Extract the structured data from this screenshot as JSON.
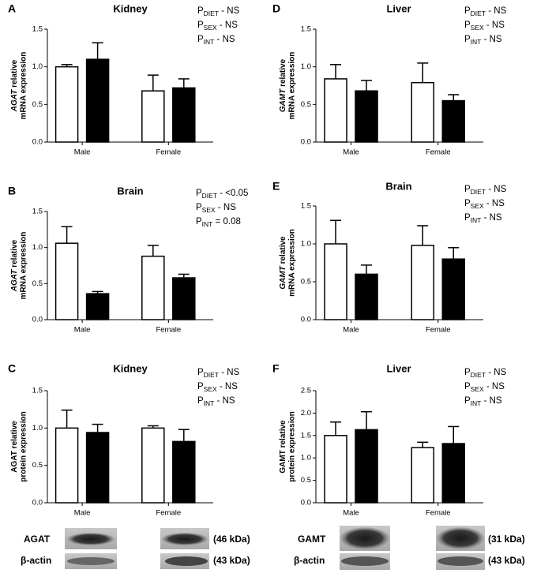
{
  "chart_data": [
    {
      "type": "bar",
      "panel": "A",
      "title": "Kidney",
      "gene": "AGAT",
      "gene_italic": true,
      "ylabel": [
        "relative",
        "mRNA expression"
      ],
      "categories": [
        "Male",
        "Female"
      ],
      "ylim": [
        0,
        1.5
      ],
      "yticks": [
        {
          "value": 0,
          "label": "0.0"
        },
        0.5,
        {
          "value": 1,
          "label": "1.0"
        },
        1.5
      ],
      "stats": [
        {
          "prefix": "P",
          "sub": "DIET",
          "text": " - NS"
        },
        {
          "prefix": "P",
          "sub": "SEX",
          "text": " - NS"
        },
        {
          "prefix": "P",
          "sub": "INT",
          "text": " - NS"
        }
      ],
      "series": [
        {
          "color": "#ffffff",
          "values": [
            1.0,
            0.68
          ],
          "errors": [
            0.03,
            0.21
          ]
        },
        {
          "color": "#000000",
          "values": [
            1.1,
            0.72
          ],
          "errors": [
            0.22,
            0.12
          ]
        }
      ]
    },
    {
      "type": "bar",
      "panel": "B",
      "title": "Brain",
      "gene": "AGAT",
      "gene_italic": true,
      "ylabel": [
        "relative",
        "mRNA expression"
      ],
      "categories": [
        "Male",
        "Female"
      ],
      "ylim": [
        0,
        1.5
      ],
      "yticks": [
        {
          "value": 0,
          "label": "0.0"
        },
        0.5,
        {
          "value": 1,
          "label": "1.0"
        },
        1.5
      ],
      "stats": [
        {
          "prefix": "P",
          "sub": "DIET",
          "text": " - <0.05"
        },
        {
          "prefix": "P",
          "sub": "SEX",
          "text": " - NS"
        },
        {
          "prefix": "P",
          "sub": "INT",
          "text": " = 0.08"
        }
      ],
      "series": [
        {
          "color": "#ffffff",
          "values": [
            1.06,
            0.88
          ],
          "errors": [
            0.23,
            0.15
          ]
        },
        {
          "color": "#000000",
          "values": [
            0.36,
            0.58
          ],
          "errors": [
            0.03,
            0.05
          ]
        }
      ]
    },
    {
      "type": "bar",
      "panel": "C",
      "title": "Kidney",
      "gene": "AGAT",
      "gene_italic": false,
      "ylabel": [
        "relative",
        "protein expression"
      ],
      "categories": [
        "Male",
        "Female"
      ],
      "ylim": [
        0,
        1.5
      ],
      "yticks": [
        {
          "value": 0,
          "label": "0.0"
        },
        0.5,
        {
          "value": 1,
          "label": "1.0"
        },
        1.5
      ],
      "stats": [
        {
          "prefix": "P",
          "sub": "DIET",
          "text": " - NS"
        },
        {
          "prefix": "P",
          "sub": "SEX",
          "text": " - NS"
        },
        {
          "prefix": "P",
          "sub": "INT",
          "text": " - NS"
        }
      ],
      "series": [
        {
          "color": "#ffffff",
          "values": [
            1.0,
            1.0
          ],
          "errors": [
            0.24,
            0.03
          ]
        },
        {
          "color": "#000000",
          "values": [
            0.94,
            0.82
          ],
          "errors": [
            0.11,
            0.16
          ]
        }
      ]
    },
    {
      "type": "bar",
      "panel": "D",
      "title": "Liver",
      "gene": "GAMT",
      "gene_italic": true,
      "ylabel": [
        "relative",
        "mRNA expression"
      ],
      "categories": [
        "Male",
        "Female"
      ],
      "ylim": [
        0,
        1.5
      ],
      "yticks": [
        {
          "value": 0,
          "label": "0.0"
        },
        0.5,
        {
          "value": 1,
          "label": "1.0"
        },
        1.5
      ],
      "stats": [
        {
          "prefix": "P",
          "sub": "DIET",
          "text": " - NS"
        },
        {
          "prefix": "P",
          "sub": "SEX",
          "text": " - NS"
        },
        {
          "prefix": "P",
          "sub": "INT",
          "text": " - NS"
        }
      ],
      "series": [
        {
          "color": "#ffffff",
          "values": [
            0.84,
            0.79
          ],
          "errors": [
            0.19,
            0.26
          ]
        },
        {
          "color": "#000000",
          "values": [
            0.68,
            0.55
          ],
          "errors": [
            0.14,
            0.08
          ]
        }
      ]
    },
    {
      "type": "bar",
      "panel": "E",
      "title": "Brain",
      "gene": "GAMT",
      "gene_italic": true,
      "ylabel": [
        "relative",
        "mRNA expression"
      ],
      "categories": [
        "Male",
        "Female"
      ],
      "ylim": [
        0,
        1.5
      ],
      "yticks": [
        {
          "value": 0,
          "label": "0.0"
        },
        0.5,
        {
          "value": 1,
          "label": "1.0"
        },
        1.5
      ],
      "stats": [
        {
          "prefix": "P",
          "sub": "DIET",
          "text": " - NS"
        },
        {
          "prefix": "P",
          "sub": "SEX",
          "text": " - NS"
        },
        {
          "prefix": "P",
          "sub": "INT",
          "text": " - NS"
        }
      ],
      "series": [
        {
          "color": "#ffffff",
          "values": [
            1.0,
            0.98
          ],
          "errors": [
            0.31,
            0.26
          ]
        },
        {
          "color": "#000000",
          "values": [
            0.6,
            0.8
          ],
          "errors": [
            0.12,
            0.15
          ]
        }
      ]
    },
    {
      "type": "bar",
      "panel": "F",
      "title": "Liver",
      "gene": "GAMT",
      "gene_italic": false,
      "ylabel": [
        "relative",
        "protein expression"
      ],
      "categories": [
        "Male",
        "Female"
      ],
      "ylim": [
        0,
        2.5
      ],
      "yticks": [
        {
          "value": 0,
          "label": "0.0"
        },
        0.5,
        {
          "value": 1,
          "label": "1.0"
        },
        1.5,
        {
          "value": 2,
          "label": "2.0"
        },
        2.5
      ],
      "stats": [
        {
          "prefix": "P",
          "sub": "DIET",
          "text": " - NS"
        },
        {
          "prefix": "P",
          "sub": "SEX",
          "text": " - NS"
        },
        {
          "prefix": "P",
          "sub": "INT",
          "text": " - NS"
        }
      ],
      "series": [
        {
          "color": "#ffffff",
          "values": [
            1.5,
            1.23
          ],
          "errors": [
            0.3,
            0.12
          ]
        },
        {
          "color": "#000000",
          "values": [
            1.63,
            1.32
          ],
          "errors": [
            0.4,
            0.38
          ]
        }
      ]
    }
  ],
  "blots": [
    {
      "protein": "AGAT",
      "protein_kda": "(46 kDa)",
      "control": "β-actin",
      "control_kda": "(43 kDa)"
    },
    {
      "protein": "GAMT",
      "protein_kda": "(31 kDa)",
      "control": "β-actin",
      "control_kda": "(43 kDa)"
    }
  ]
}
